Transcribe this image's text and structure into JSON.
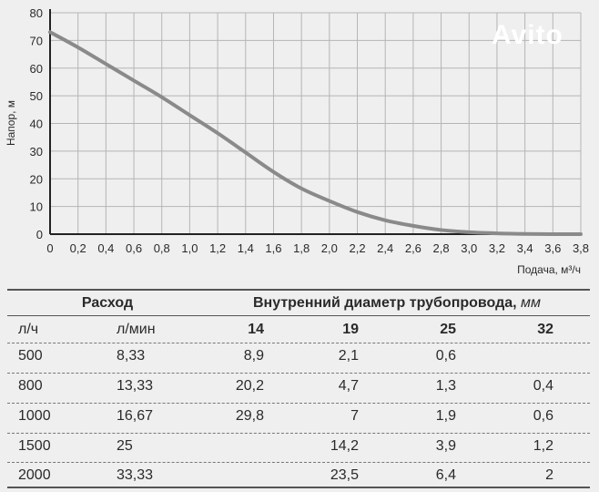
{
  "chart_data": {
    "type": "line",
    "xlabel": "Подача, м³/ч",
    "ylabel": "Напор, м",
    "xlim": [
      0,
      3.8
    ],
    "ylim": [
      0,
      80
    ],
    "grid": true,
    "x_ticks": [
      "0",
      "0,2",
      "0,4",
      "0,6",
      "0,8",
      "1,0",
      "1,2",
      "1,4",
      "1,6",
      "1,8",
      "2,0",
      "2,2",
      "2,4",
      "2,6",
      "2,8",
      "3,0",
      "3,2",
      "3,4",
      "3,6",
      "3,8"
    ],
    "y_ticks": [
      "0",
      "10",
      "20",
      "30",
      "40",
      "50",
      "60",
      "70",
      "80"
    ],
    "x": [
      0,
      0.2,
      0.4,
      0.6,
      0.8,
      1.0,
      1.2,
      1.4,
      1.6,
      1.8,
      2.0,
      2.2,
      2.4,
      2.6,
      2.8,
      3.0,
      3.2,
      3.4,
      3.6,
      3.8
    ],
    "y": [
      73,
      67.5,
      61.5,
      55.5,
      49.5,
      43,
      36.5,
      29.5,
      22.5,
      16.5,
      12,
      8,
      5,
      3,
      1.5,
      0.7,
      0.3,
      0.1,
      0,
      0
    ],
    "line_color": "#8a8a8a"
  },
  "table": {
    "group_header_left": "Расход",
    "group_header_right": "Внутренний диаметр трубопровода,",
    "group_header_unit": "мм",
    "columns": [
      "л/ч",
      "л/мин",
      "14",
      "19",
      "25",
      "32"
    ],
    "rows": [
      [
        "500",
        "8,33",
        "8,9",
        "2,1",
        "0,6",
        ""
      ],
      [
        "800",
        "13,33",
        "20,2",
        "4,7",
        "1,3",
        "0,4"
      ],
      [
        "1000",
        "16,67",
        "29,8",
        "7",
        "1,9",
        "0,6"
      ],
      [
        "1500",
        "25",
        "",
        "14,2",
        "3,9",
        "1,2"
      ],
      [
        "2000",
        "33,33",
        "",
        "23,5",
        "6,4",
        "2"
      ]
    ]
  },
  "watermark": "Avito"
}
